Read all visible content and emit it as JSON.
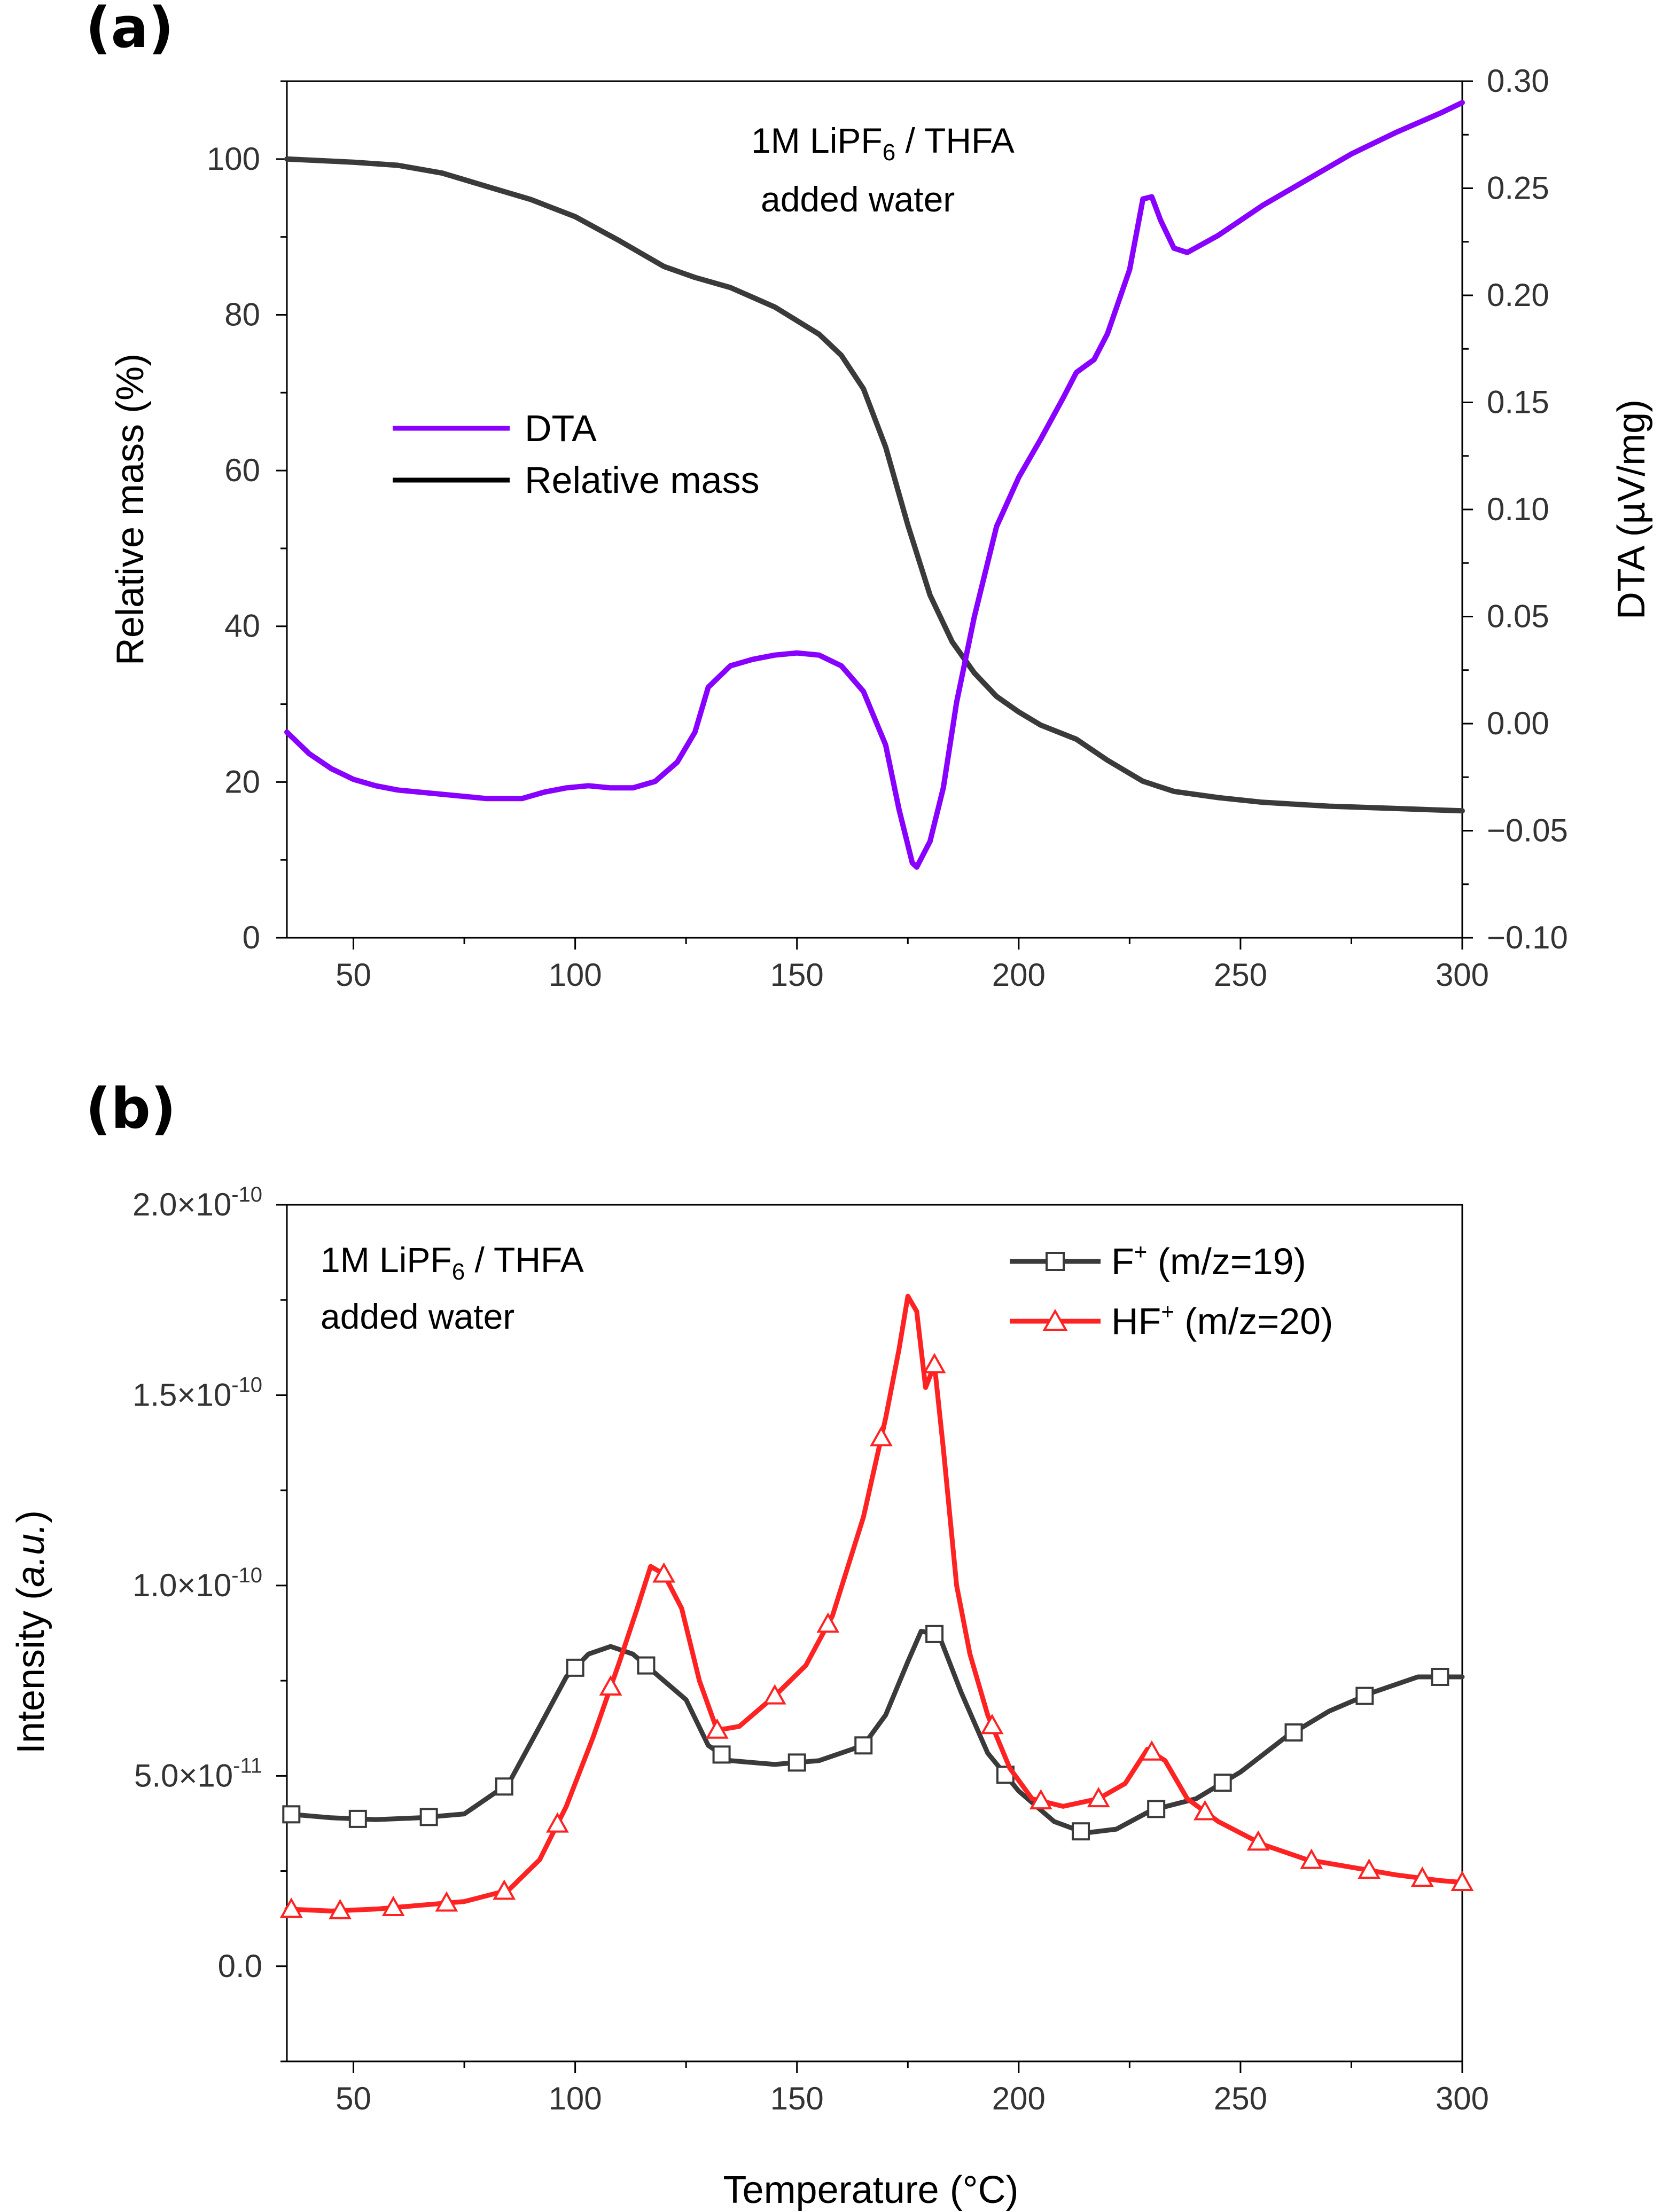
{
  "chart_data": [
    {
      "type": "line",
      "panel_label": "(a)",
      "annotation": {
        "line1_prefix": "1M LiPF",
        "line1_sub": "6",
        "line1_suffix": " / THFA",
        "line2": "added water"
      },
      "xlabel": "",
      "xlim": [
        35,
        300
      ],
      "xticks": [
        "50",
        "100",
        "150",
        "200",
        "250",
        "300"
      ],
      "ylabel": "Relative mass (%)",
      "ylim": [
        0,
        110
      ],
      "yticks": [
        "0",
        "20",
        "40",
        "60",
        "80",
        "100"
      ],
      "y2label": "DTA (µV/mg)",
      "y2lim": [
        -0.1,
        0.3
      ],
      "y2ticks": [
        "−0.10",
        "−0.05",
        "0.00",
        "0.05",
        "0.10",
        "0.15",
        "0.20",
        "0.25",
        "0.30"
      ],
      "legend": [
        {
          "name": "DTA",
          "color": "#8800ff"
        },
        {
          "name": "Relative mass",
          "color": "#000000"
        }
      ],
      "series": [
        {
          "name": "Relative mass",
          "axis": "left",
          "color": "#3a3a3a",
          "points": [
            [
              35,
              100
            ],
            [
              50,
              99.6
            ],
            [
              60,
              99.2
            ],
            [
              70,
              98.2
            ],
            [
              80,
              96.5
            ],
            [
              90,
              94.8
            ],
            [
              100,
              92.6
            ],
            [
              110,
              89.5
            ],
            [
              120,
              86.2
            ],
            [
              127,
              84.8
            ],
            [
              135,
              83.5
            ],
            [
              145,
              81
            ],
            [
              155,
              77.5
            ],
            [
              160,
              74.8
            ],
            [
              165,
              70.5
            ],
            [
              170,
              63
            ],
            [
              175,
              53
            ],
            [
              180,
              44
            ],
            [
              185,
              38
            ],
            [
              190,
              34
            ],
            [
              195,
              31
            ],
            [
              200,
              29
            ],
            [
              205,
              27.3
            ],
            [
              213,
              25.5
            ],
            [
              220,
              22.8
            ],
            [
              228,
              20.1
            ],
            [
              235,
              18.8
            ],
            [
              245,
              18
            ],
            [
              255,
              17.4
            ],
            [
              270,
              16.9
            ],
            [
              285,
              16.6
            ],
            [
              300,
              16.3
            ]
          ]
        },
        {
          "name": "DTA",
          "axis": "right",
          "color": "#8800ff",
          "points": [
            [
              35,
              -0.004
            ],
            [
              40,
              -0.014
            ],
            [
              45,
              -0.021
            ],
            [
              50,
              -0.026
            ],
            [
              55,
              -0.029
            ],
            [
              60,
              -0.031
            ],
            [
              70,
              -0.033
            ],
            [
              80,
              -0.035
            ],
            [
              88,
              -0.035
            ],
            [
              93,
              -0.032
            ],
            [
              98,
              -0.03
            ],
            [
              103,
              -0.029
            ],
            [
              108,
              -0.03
            ],
            [
              113,
              -0.03
            ],
            [
              118,
              -0.027
            ],
            [
              123,
              -0.018
            ],
            [
              127,
              -0.004
            ],
            [
              130,
              0.017
            ],
            [
              135,
              0.027
            ],
            [
              140,
              0.03
            ],
            [
              145,
              0.032
            ],
            [
              150,
              0.033
            ],
            [
              155,
              0.032
            ],
            [
              160,
              0.027
            ],
            [
              165,
              0.015
            ],
            [
              170,
              -0.01
            ],
            [
              173,
              -0.04
            ],
            [
              176,
              -0.065
            ],
            [
              177,
              -0.067
            ],
            [
              180,
              -0.055
            ],
            [
              183,
              -0.03
            ],
            [
              186,
              0.01
            ],
            [
              190,
              0.05
            ],
            [
              195,
              0.092
            ],
            [
              200,
              0.115
            ],
            [
              205,
              0.133
            ],
            [
              210,
              0.152
            ],
            [
              213,
              0.164
            ],
            [
              217,
              0.17
            ],
            [
              220,
              0.182
            ],
            [
              225,
              0.212
            ],
            [
              228,
              0.245
            ],
            [
              230,
              0.246
            ],
            [
              232,
              0.235
            ],
            [
              235,
              0.222
            ],
            [
              238,
              0.22
            ],
            [
              245,
              0.228
            ],
            [
              255,
              0.242
            ],
            [
              265,
              0.254
            ],
            [
              275,
              0.266
            ],
            [
              285,
              0.276
            ],
            [
              295,
              0.285
            ],
            [
              300,
              0.29
            ]
          ]
        }
      ]
    },
    {
      "type": "line",
      "panel_label": "(b)",
      "annotation": {
        "line1_prefix": "1M LiPF",
        "line1_sub": "6",
        "line1_suffix": " / THFA",
        "line2": "added water"
      },
      "xlabel": "Temperature (°C)",
      "xlim": [
        35,
        300
      ],
      "xticks": [
        "50",
        "100",
        "150",
        "200",
        "250",
        "300"
      ],
      "ylabel_prefix": "Intensity (",
      "ylabel_italic": "a.u.",
      "ylabel_suffix": ")",
      "ylim": [
        -2.5e-11,
        2e-10
      ],
      "yticks": [
        {
          "value": 0,
          "mantissa": "0.0",
          "exponent": ""
        },
        {
          "value": 5e-11,
          "mantissa": "5.0×10",
          "exponent": "-11"
        },
        {
          "value": 1e-10,
          "mantissa": "1.0×10",
          "exponent": "-10"
        },
        {
          "value": 1.5e-10,
          "mantissa": "1.5×10",
          "exponent": "-10"
        },
        {
          "value": 2e-10,
          "mantissa": "2.0×10",
          "exponent": "-10"
        }
      ],
      "legend": [
        {
          "name_prefix": "F",
          "name_sup": "+",
          "name_suffix": " (m/z=19)",
          "color": "#3a3a3a",
          "marker": "square"
        },
        {
          "name_prefix": "HF",
          "name_sup": "+",
          "name_suffix": " (m/z=20)",
          "color": "#ff2222",
          "marker": "triangle"
        }
      ],
      "series": [
        {
          "name": "F+ (m/z=19)",
          "color": "#3a3a3a",
          "marker": "square",
          "points": [
            [
              35,
              4e-11
            ],
            [
              45,
              3.9e-11
            ],
            [
              55,
              3.85e-11
            ],
            [
              65,
              3.9e-11
            ],
            [
              75,
              4e-11
            ],
            [
              85,
              4.8e-11
            ],
            [
              92,
              6.3e-11
            ],
            [
              98,
              7.6e-11
            ],
            [
              103,
              8.2e-11
            ],
            [
              108,
              8.4e-11
            ],
            [
              113,
              8.2e-11
            ],
            [
              118,
              7.7e-11
            ],
            [
              125,
              7e-11
            ],
            [
              130,
              5.8e-11
            ],
            [
              135,
              5.4e-11
            ],
            [
              145,
              5.3e-11
            ],
            [
              155,
              5.4e-11
            ],
            [
              165,
              5.8e-11
            ],
            [
              170,
              6.6e-11
            ],
            [
              175,
              8e-11
            ],
            [
              178,
              8.8e-11
            ],
            [
              182,
              8.7e-11
            ],
            [
              187,
              7.2e-11
            ],
            [
              193,
              5.6e-11
            ],
            [
              200,
              4.6e-11
            ],
            [
              208,
              3.8e-11
            ],
            [
              215,
              3.5e-11
            ],
            [
              222,
              3.6e-11
            ],
            [
              230,
              4.1e-11
            ],
            [
              240,
              4.4e-11
            ],
            [
              250,
              5.1e-11
            ],
            [
              260,
              6e-11
            ],
            [
              270,
              6.7e-11
            ],
            [
              280,
              7.2e-11
            ],
            [
              290,
              7.6e-11
            ],
            [
              300,
              7.6e-11
            ]
          ],
          "marker_x": [
            36,
            51,
            67,
            84,
            100,
            116,
            133,
            150,
            165,
            181,
            197,
            214,
            231,
            246,
            262,
            278,
            295
          ]
        },
        {
          "name": "HF+ (m/z=20)",
          "color": "#ff2222",
          "marker": "triangle",
          "points": [
            [
              35,
              1.5e-11
            ],
            [
              45,
              1.45e-11
            ],
            [
              55,
              1.5e-11
            ],
            [
              65,
              1.6e-11
            ],
            [
              75,
              1.7e-11
            ],
            [
              85,
              2e-11
            ],
            [
              92,
              2.8e-11
            ],
            [
              98,
              4.2e-11
            ],
            [
              104,
              6e-11
            ],
            [
              110,
              8e-11
            ],
            [
              114,
              9.4e-11
            ],
            [
              117,
              1.05e-10
            ],
            [
              120,
              1.03e-10
            ],
            [
              124,
              9.4e-11
            ],
            [
              128,
              7.5e-11
            ],
            [
              132,
              6.2e-11
            ],
            [
              137,
              6.3e-11
            ],
            [
              145,
              7.1e-11
            ],
            [
              152,
              7.9e-11
            ],
            [
              158,
              9.2e-11
            ],
            [
              165,
              1.18e-10
            ],
            [
              170,
              1.44e-10
            ],
            [
              173,
              1.62e-10
            ],
            [
              175,
              1.76e-10
            ],
            [
              177,
              1.72e-10
            ],
            [
              179,
              1.52e-10
            ],
            [
              181,
              1.58e-10
            ],
            [
              183,
              1.36e-10
            ],
            [
              186,
              1e-10
            ],
            [
              189,
              8.2e-11
            ],
            [
              193,
              6.6e-11
            ],
            [
              198,
              5.2e-11
            ],
            [
              203,
              4.4e-11
            ],
            [
              210,
              4.2e-11
            ],
            [
              218,
              4.4e-11
            ],
            [
              224,
              4.8e-11
            ],
            [
              229,
              5.7e-11
            ],
            [
              233,
              5.4e-11
            ],
            [
              238,
              4.4e-11
            ],
            [
              245,
              3.8e-11
            ],
            [
              255,
              3.2e-11
            ],
            [
              265,
              2.8e-11
            ],
            [
              275,
              2.6e-11
            ],
            [
              285,
              2.4e-11
            ],
            [
              295,
              2.25e-11
            ],
            [
              300,
              2.2e-11
            ]
          ],
          "marker_x": [
            36,
            47,
            59,
            71,
            84,
            96,
            108,
            120,
            132,
            145,
            157,
            169,
            181,
            194,
            205,
            218,
            230,
            242,
            254,
            266,
            279,
            291,
            300
          ]
        }
      ]
    }
  ]
}
